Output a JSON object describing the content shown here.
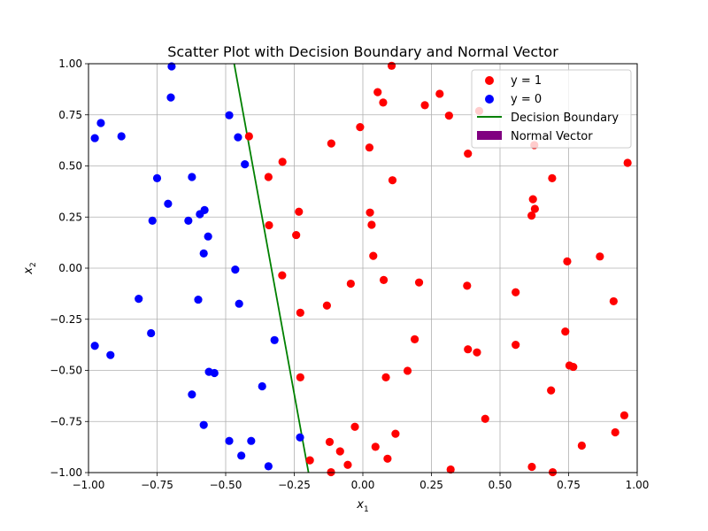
{
  "chart_data": {
    "type": "scatter",
    "title": "Scatter Plot with Decision Boundary and Normal Vector",
    "xlabel": "x",
    "xlabel_sub": "1",
    "ylabel": "x",
    "ylabel_sub": "2",
    "xlim": [
      -1.0,
      1.0
    ],
    "ylim": [
      -1.0,
      1.0
    ],
    "grid": true,
    "legend_position": "top-right",
    "xticks": [
      {
        "value": -1.0,
        "label": "−1.00"
      },
      {
        "value": -0.75,
        "label": "−0.75"
      },
      {
        "value": -0.5,
        "label": "−0.50"
      },
      {
        "value": -0.25,
        "label": "−0.25"
      },
      {
        "value": 0.0,
        "label": "0.00"
      },
      {
        "value": 0.25,
        "label": "0.25"
      },
      {
        "value": 0.5,
        "label": "0.50"
      },
      {
        "value": 0.75,
        "label": "0.75"
      },
      {
        "value": 1.0,
        "label": "1.00"
      }
    ],
    "yticks": [
      {
        "value": -1.0,
        "label": "−1.00"
      },
      {
        "value": -0.75,
        "label": "−0.75"
      },
      {
        "value": -0.5,
        "label": "−0.50"
      },
      {
        "value": -0.25,
        "label": "−0.25"
      },
      {
        "value": 0.0,
        "label": "0.00"
      },
      {
        "value": 0.25,
        "label": "0.25"
      },
      {
        "value": 0.5,
        "label": "0.50"
      },
      {
        "value": 0.75,
        "label": "0.75"
      },
      {
        "value": 1.0,
        "label": "1.00"
      }
    ],
    "series": [
      {
        "name": "y = 1",
        "color": "#ff0000",
        "points": [
          [
            0.105,
            0.99
          ],
          [
            0.054,
            0.861
          ],
          [
            0.28,
            0.853
          ],
          [
            0.074,
            0.81
          ],
          [
            0.226,
            0.797
          ],
          [
            0.314,
            0.746
          ],
          [
            0.424,
            0.769
          ],
          [
            -0.415,
            0.645
          ],
          [
            -0.01,
            0.69
          ],
          [
            -0.115,
            0.61
          ],
          [
            0.024,
            0.59
          ],
          [
            0.625,
            0.602
          ],
          [
            0.383,
            0.56
          ],
          [
            -0.293,
            0.52
          ],
          [
            -0.344,
            0.446
          ],
          [
            0.108,
            0.43
          ],
          [
            0.69,
            0.44
          ],
          [
            0.965,
            0.515
          ],
          [
            0.62,
            0.337
          ],
          [
            0.627,
            0.29
          ],
          [
            0.615,
            0.257
          ],
          [
            -0.233,
            0.276
          ],
          [
            0.026,
            0.272
          ],
          [
            -0.342,
            0.21
          ],
          [
            0.032,
            0.212
          ],
          [
            -0.243,
            0.162
          ],
          [
            0.038,
            0.06
          ],
          [
            0.745,
            0.033
          ],
          [
            0.864,
            0.057
          ],
          [
            -0.294,
            -0.035
          ],
          [
            0.076,
            -0.058
          ],
          [
            -0.044,
            -0.076
          ],
          [
            0.205,
            -0.07
          ],
          [
            0.38,
            -0.086
          ],
          [
            0.557,
            -0.118
          ],
          [
            0.914,
            -0.162
          ],
          [
            -0.131,
            -0.183
          ],
          [
            -0.228,
            -0.218
          ],
          [
            0.738,
            -0.31
          ],
          [
            0.189,
            -0.348
          ],
          [
            0.557,
            -0.375
          ],
          [
            0.383,
            -0.397
          ],
          [
            0.416,
            -0.412
          ],
          [
            0.753,
            -0.476
          ],
          [
            0.767,
            -0.483
          ],
          [
            0.163,
            -0.502
          ],
          [
            -0.228,
            -0.534
          ],
          [
            0.084,
            -0.534
          ],
          [
            0.686,
            -0.598
          ],
          [
            0.446,
            -0.737
          ],
          [
            0.953,
            -0.72
          ],
          [
            -0.029,
            -0.776
          ],
          [
            0.119,
            -0.81
          ],
          [
            0.92,
            -0.803
          ],
          [
            -0.121,
            -0.85
          ],
          [
            0.046,
            -0.874
          ],
          [
            0.798,
            -0.868
          ],
          [
            -0.083,
            -0.896
          ],
          [
            0.09,
            -0.932
          ],
          [
            -0.193,
            -0.94
          ],
          [
            -0.055,
            -0.962
          ],
          [
            0.32,
            -0.985
          ],
          [
            0.616,
            -0.972
          ],
          [
            -0.116,
            -0.998
          ],
          [
            0.692,
            -0.998
          ]
        ]
      },
      {
        "name": "y = 0",
        "color": "#0000ff",
        "points": [
          [
            -0.697,
            0.987
          ],
          [
            -0.7,
            0.835
          ],
          [
            -0.955,
            0.71
          ],
          [
            -0.977,
            0.636
          ],
          [
            -0.88,
            0.645
          ],
          [
            -0.487,
            0.748
          ],
          [
            -0.455,
            0.64
          ],
          [
            -0.43,
            0.508
          ],
          [
            -0.75,
            0.44
          ],
          [
            -0.623,
            0.446
          ],
          [
            -0.71,
            0.315
          ],
          [
            -0.767,
            0.232
          ],
          [
            -0.636,
            0.232
          ],
          [
            -0.577,
            0.284
          ],
          [
            -0.594,
            0.264
          ],
          [
            -0.564,
            0.155
          ],
          [
            -0.58,
            0.072
          ],
          [
            -0.465,
            -0.007
          ],
          [
            -0.817,
            -0.15
          ],
          [
            -0.6,
            -0.154
          ],
          [
            -0.451,
            -0.174
          ],
          [
            -0.772,
            -0.318
          ],
          [
            -0.322,
            -0.352
          ],
          [
            -0.977,
            -0.38
          ],
          [
            -0.92,
            -0.425
          ],
          [
            -0.561,
            -0.507
          ],
          [
            -0.541,
            -0.513
          ],
          [
            -0.367,
            -0.578
          ],
          [
            -0.623,
            -0.618
          ],
          [
            -0.58,
            -0.767
          ],
          [
            -0.229,
            -0.828
          ],
          [
            -0.487,
            -0.845
          ],
          [
            -0.407,
            -0.845
          ],
          [
            -0.443,
            -0.917
          ],
          [
            -0.344,
            -0.969
          ]
        ]
      }
    ],
    "decision_boundary": {
      "name": "Decision Boundary",
      "color": "#008000",
      "points": [
        [
          -0.469,
          1.0
        ],
        [
          -0.198,
          -1.0
        ]
      ]
    },
    "normal_vector": {
      "name": "Normal Vector",
      "color": "#800080"
    }
  }
}
